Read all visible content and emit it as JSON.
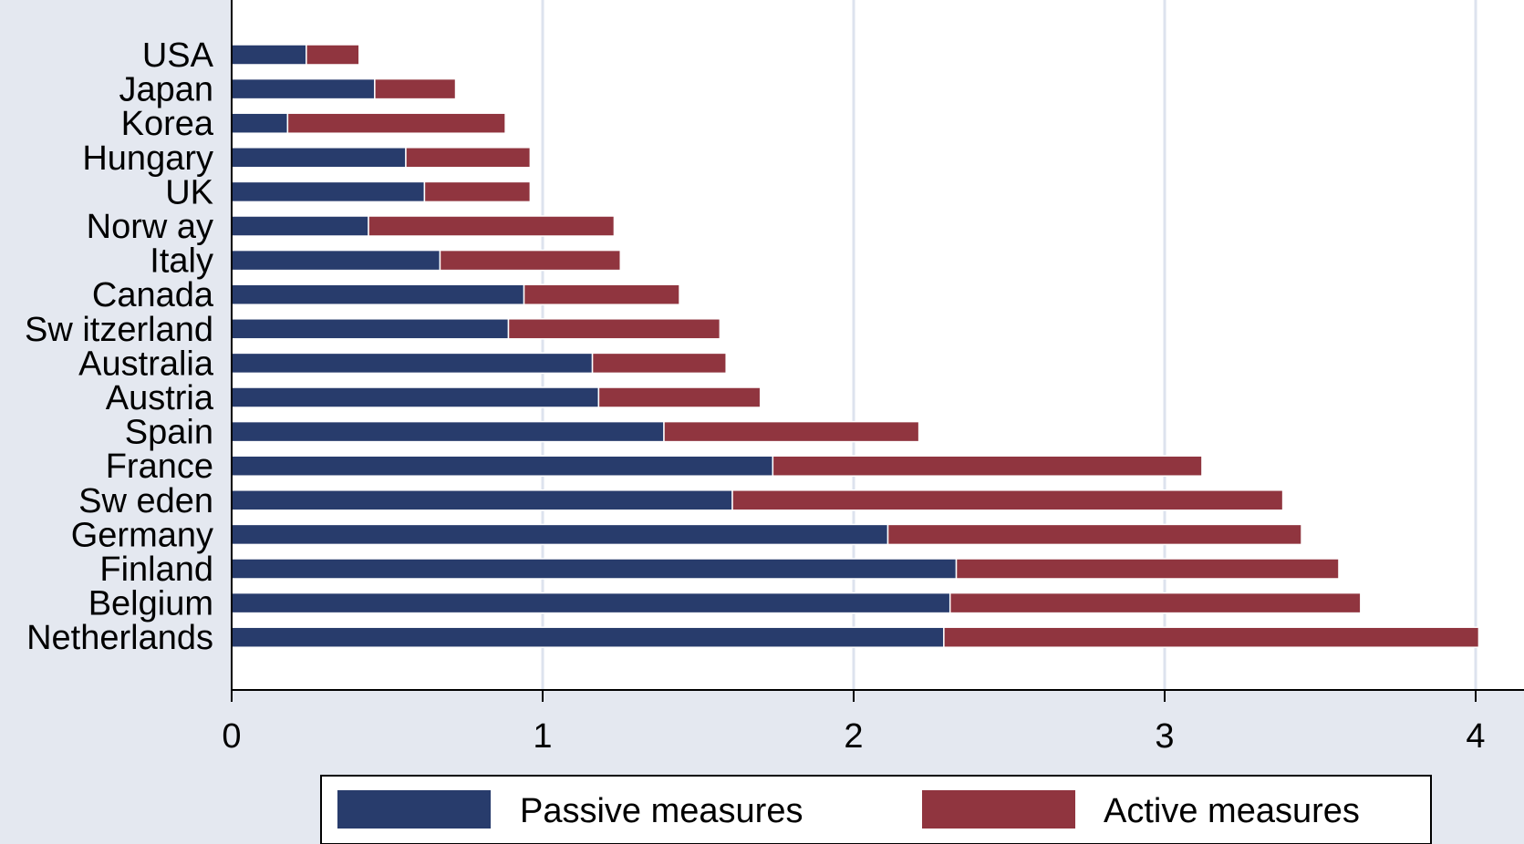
{
  "chart_data": {
    "type": "bar",
    "orientation": "horizontal",
    "stacked": true,
    "categories": [
      "USA",
      "Japan",
      "Korea",
      "Hungary",
      "UK",
      "Norw ay",
      "Italy",
      "Canada",
      "Sw itzerland",
      "Australia",
      "Austria",
      "Spain",
      "France",
      "Sw eden",
      "Germany",
      "Finland",
      "Belgium",
      "Netherlands"
    ],
    "series": [
      {
        "name": "Passive measures",
        "color": "#283c6c",
        "values": [
          0.24,
          0.46,
          0.18,
          0.56,
          0.62,
          0.44,
          0.67,
          0.94,
          0.89,
          1.16,
          1.18,
          1.39,
          1.74,
          1.61,
          2.11,
          2.33,
          2.31,
          2.29
        ]
      },
      {
        "name": "Active measures",
        "color": "#90353f",
        "values": [
          0.17,
          0.26,
          0.7,
          0.4,
          0.34,
          0.79,
          0.58,
          0.5,
          0.68,
          0.43,
          0.52,
          0.82,
          1.38,
          1.77,
          1.33,
          1.23,
          1.32,
          1.72
        ]
      }
    ],
    "xlim": [
      0,
      4.1
    ],
    "xticks": [
      "0",
      "1",
      "2",
      "3",
      "4"
    ],
    "grid": true,
    "legend_position": "bottom",
    "title": "",
    "xlabel": "",
    "ylabel": ""
  }
}
